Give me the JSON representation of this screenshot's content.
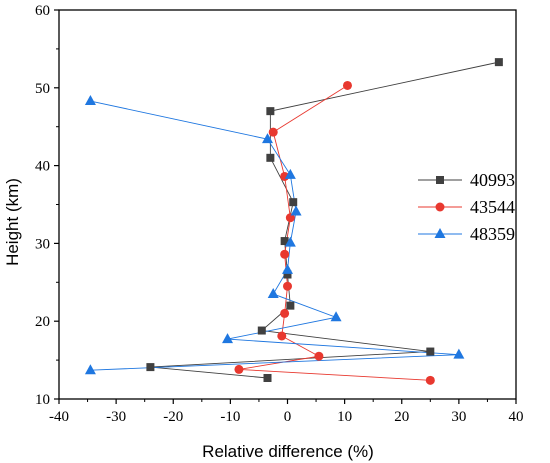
{
  "chart_data": {
    "type": "line",
    "title": "",
    "xlabel": "Relative difference (%)",
    "ylabel": "Height (km)",
    "xlim": [
      -40,
      40
    ],
    "ylim": [
      10,
      60
    ],
    "xticks": [
      -40,
      -30,
      -20,
      -10,
      0,
      10,
      20,
      30,
      40
    ],
    "yticks": [
      10,
      20,
      30,
      40,
      50,
      60
    ],
    "grid": false,
    "legend_position": "right",
    "series": [
      {
        "name": "40993",
        "color": "#404040",
        "marker": "square",
        "points": [
          {
            "x": 37.0,
            "y": 53.3
          },
          {
            "x": -3.0,
            "y": 47.0
          },
          {
            "x": -3.0,
            "y": 41.0
          },
          {
            "x": 1.0,
            "y": 35.3
          },
          {
            "x": -0.5,
            "y": 30.3
          },
          {
            "x": 0.0,
            "y": 26.0
          },
          {
            "x": 0.5,
            "y": 22.0
          },
          {
            "x": -4.5,
            "y": 18.8
          },
          {
            "x": 25.0,
            "y": 16.1
          },
          {
            "x": -24.0,
            "y": 14.1
          },
          {
            "x": -3.5,
            "y": 12.7
          }
        ]
      },
      {
        "name": "43544",
        "color": "#e8382f",
        "marker": "circle",
        "points": [
          {
            "x": 10.5,
            "y": 50.3
          },
          {
            "x": -2.5,
            "y": 44.3
          },
          {
            "x": -0.5,
            "y": 38.6
          },
          {
            "x": 0.5,
            "y": 33.3
          },
          {
            "x": -0.5,
            "y": 28.6
          },
          {
            "x": 0.0,
            "y": 24.5
          },
          {
            "x": -0.5,
            "y": 21.0
          },
          {
            "x": -1.0,
            "y": 18.1
          },
          {
            "x": 5.5,
            "y": 15.5
          },
          {
            "x": -8.5,
            "y": 13.8
          },
          {
            "x": 25.0,
            "y": 12.4
          }
        ]
      },
      {
        "name": "48359",
        "color": "#1f77e0",
        "marker": "triangle",
        "points": [
          {
            "x": -34.5,
            "y": 48.3
          },
          {
            "x": -3.5,
            "y": 43.4
          },
          {
            "x": 0.5,
            "y": 38.8
          },
          {
            "x": 1.5,
            "y": 34.1
          },
          {
            "x": 0.5,
            "y": 30.1
          },
          {
            "x": 0.0,
            "y": 26.6
          },
          {
            "x": -2.5,
            "y": 23.5
          },
          {
            "x": 8.5,
            "y": 20.5
          },
          {
            "x": -10.5,
            "y": 17.7
          },
          {
            "x": 30.0,
            "y": 15.7
          },
          {
            "x": -34.5,
            "y": 13.7
          }
        ]
      }
    ]
  }
}
